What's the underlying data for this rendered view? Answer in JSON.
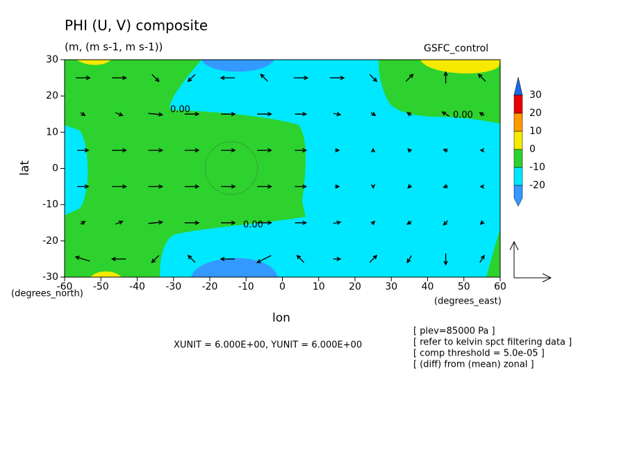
{
  "chart_data": {
    "type": "contour",
    "title": "PHI (U, V) composite",
    "subtitle": "(m, (m s-1, m s-1))",
    "legend_title": "GSFC_control",
    "xlabel": "lon",
    "ylabel": "lat",
    "xunit_label": "(degrees_east)",
    "yunit_label": "(degrees_north)",
    "unit_note": "XUNIT = 6.000E+00, YUNIT = 6.000E+00",
    "notes": [
      "[ plev=85000 Pa ]",
      "[ refer to kelvin spct filtering data ]",
      "[ comp threshold = 5.0e-05 ]",
      "[ (diff) from (mean) zonal ]"
    ],
    "xlim": [
      -60,
      60
    ],
    "ylim": [
      -30,
      30
    ],
    "xticks": [
      -60,
      -50,
      -40,
      -30,
      -20,
      -10,
      0,
      10,
      20,
      30,
      40,
      50,
      60
    ],
    "yticks": [
      -30,
      -20,
      -10,
      0,
      10,
      20,
      30
    ],
    "colorbar": {
      "levels": [
        -20,
        -10,
        0,
        10,
        20,
        30
      ],
      "colors": [
        "#3399ff",
        "#00e8ff",
        "#2ed22e",
        "#f5ea00",
        "#ff9a00",
        "#e60000",
        "#1a66e6"
      ]
    },
    "contour_labels": [
      {
        "value": 0,
        "label": "0.00"
      },
      {
        "value": 0,
        "label": "0.00"
      },
      {
        "value": 0,
        "label": "0.00"
      }
    ],
    "vectors": {
      "lon": [
        -55,
        -45,
        -35,
        -25,
        -15,
        -5,
        5,
        15,
        25,
        35,
        45,
        55
      ],
      "lat": [
        25,
        15,
        5,
        -5,
        -15,
        -25
      ],
      "u": [
        [
          1,
          1,
          0.5,
          -0.5,
          -1,
          -0.5,
          1,
          1,
          0.5,
          0.5,
          0,
          -0.5
        ],
        [
          0.3,
          0.5,
          1,
          1,
          1,
          1,
          0.8,
          0.5,
          0.3,
          -0.3,
          -0.5,
          -0.3
        ],
        [
          0.8,
          1,
          1,
          1,
          1,
          1,
          0.8,
          0.3,
          0,
          -0.2,
          -0.3,
          -0.2
        ],
        [
          0.8,
          1,
          1,
          1,
          1,
          1,
          0.8,
          0.3,
          0,
          -0.2,
          -0.3,
          -0.2
        ],
        [
          0.3,
          0.5,
          1,
          1,
          1,
          1,
          0.8,
          0.5,
          0.2,
          -0.3,
          -0.3,
          -0.2
        ],
        [
          -1,
          -1,
          -0.5,
          -0.5,
          -1,
          -1,
          -0.5,
          0.5,
          0.5,
          -0.3,
          0,
          0.3
        ]
      ],
      "v": [
        [
          0,
          0,
          -0.5,
          -0.5,
          0,
          0.5,
          0,
          0,
          -0.5,
          0.5,
          0.8,
          0.5
        ],
        [
          -0.2,
          -0.2,
          -0.1,
          0,
          0,
          0,
          0,
          -0.1,
          -0.2,
          0.2,
          0.3,
          0.2
        ],
        [
          0,
          0,
          0,
          0,
          0,
          0,
          0,
          0,
          0.2,
          0.2,
          0.1,
          0
        ],
        [
          0,
          0,
          0,
          0,
          0,
          0,
          0,
          0,
          -0.2,
          -0.2,
          -0.1,
          0
        ],
        [
          0.2,
          0.2,
          0.1,
          0,
          0,
          0,
          0,
          0.1,
          0.2,
          -0.2,
          -0.3,
          -0.2
        ],
        [
          0.3,
          0,
          -0.5,
          0.5,
          0,
          -0.5,
          0.5,
          0,
          0.5,
          -0.5,
          -0.8,
          0.5
        ]
      ]
    }
  }
}
